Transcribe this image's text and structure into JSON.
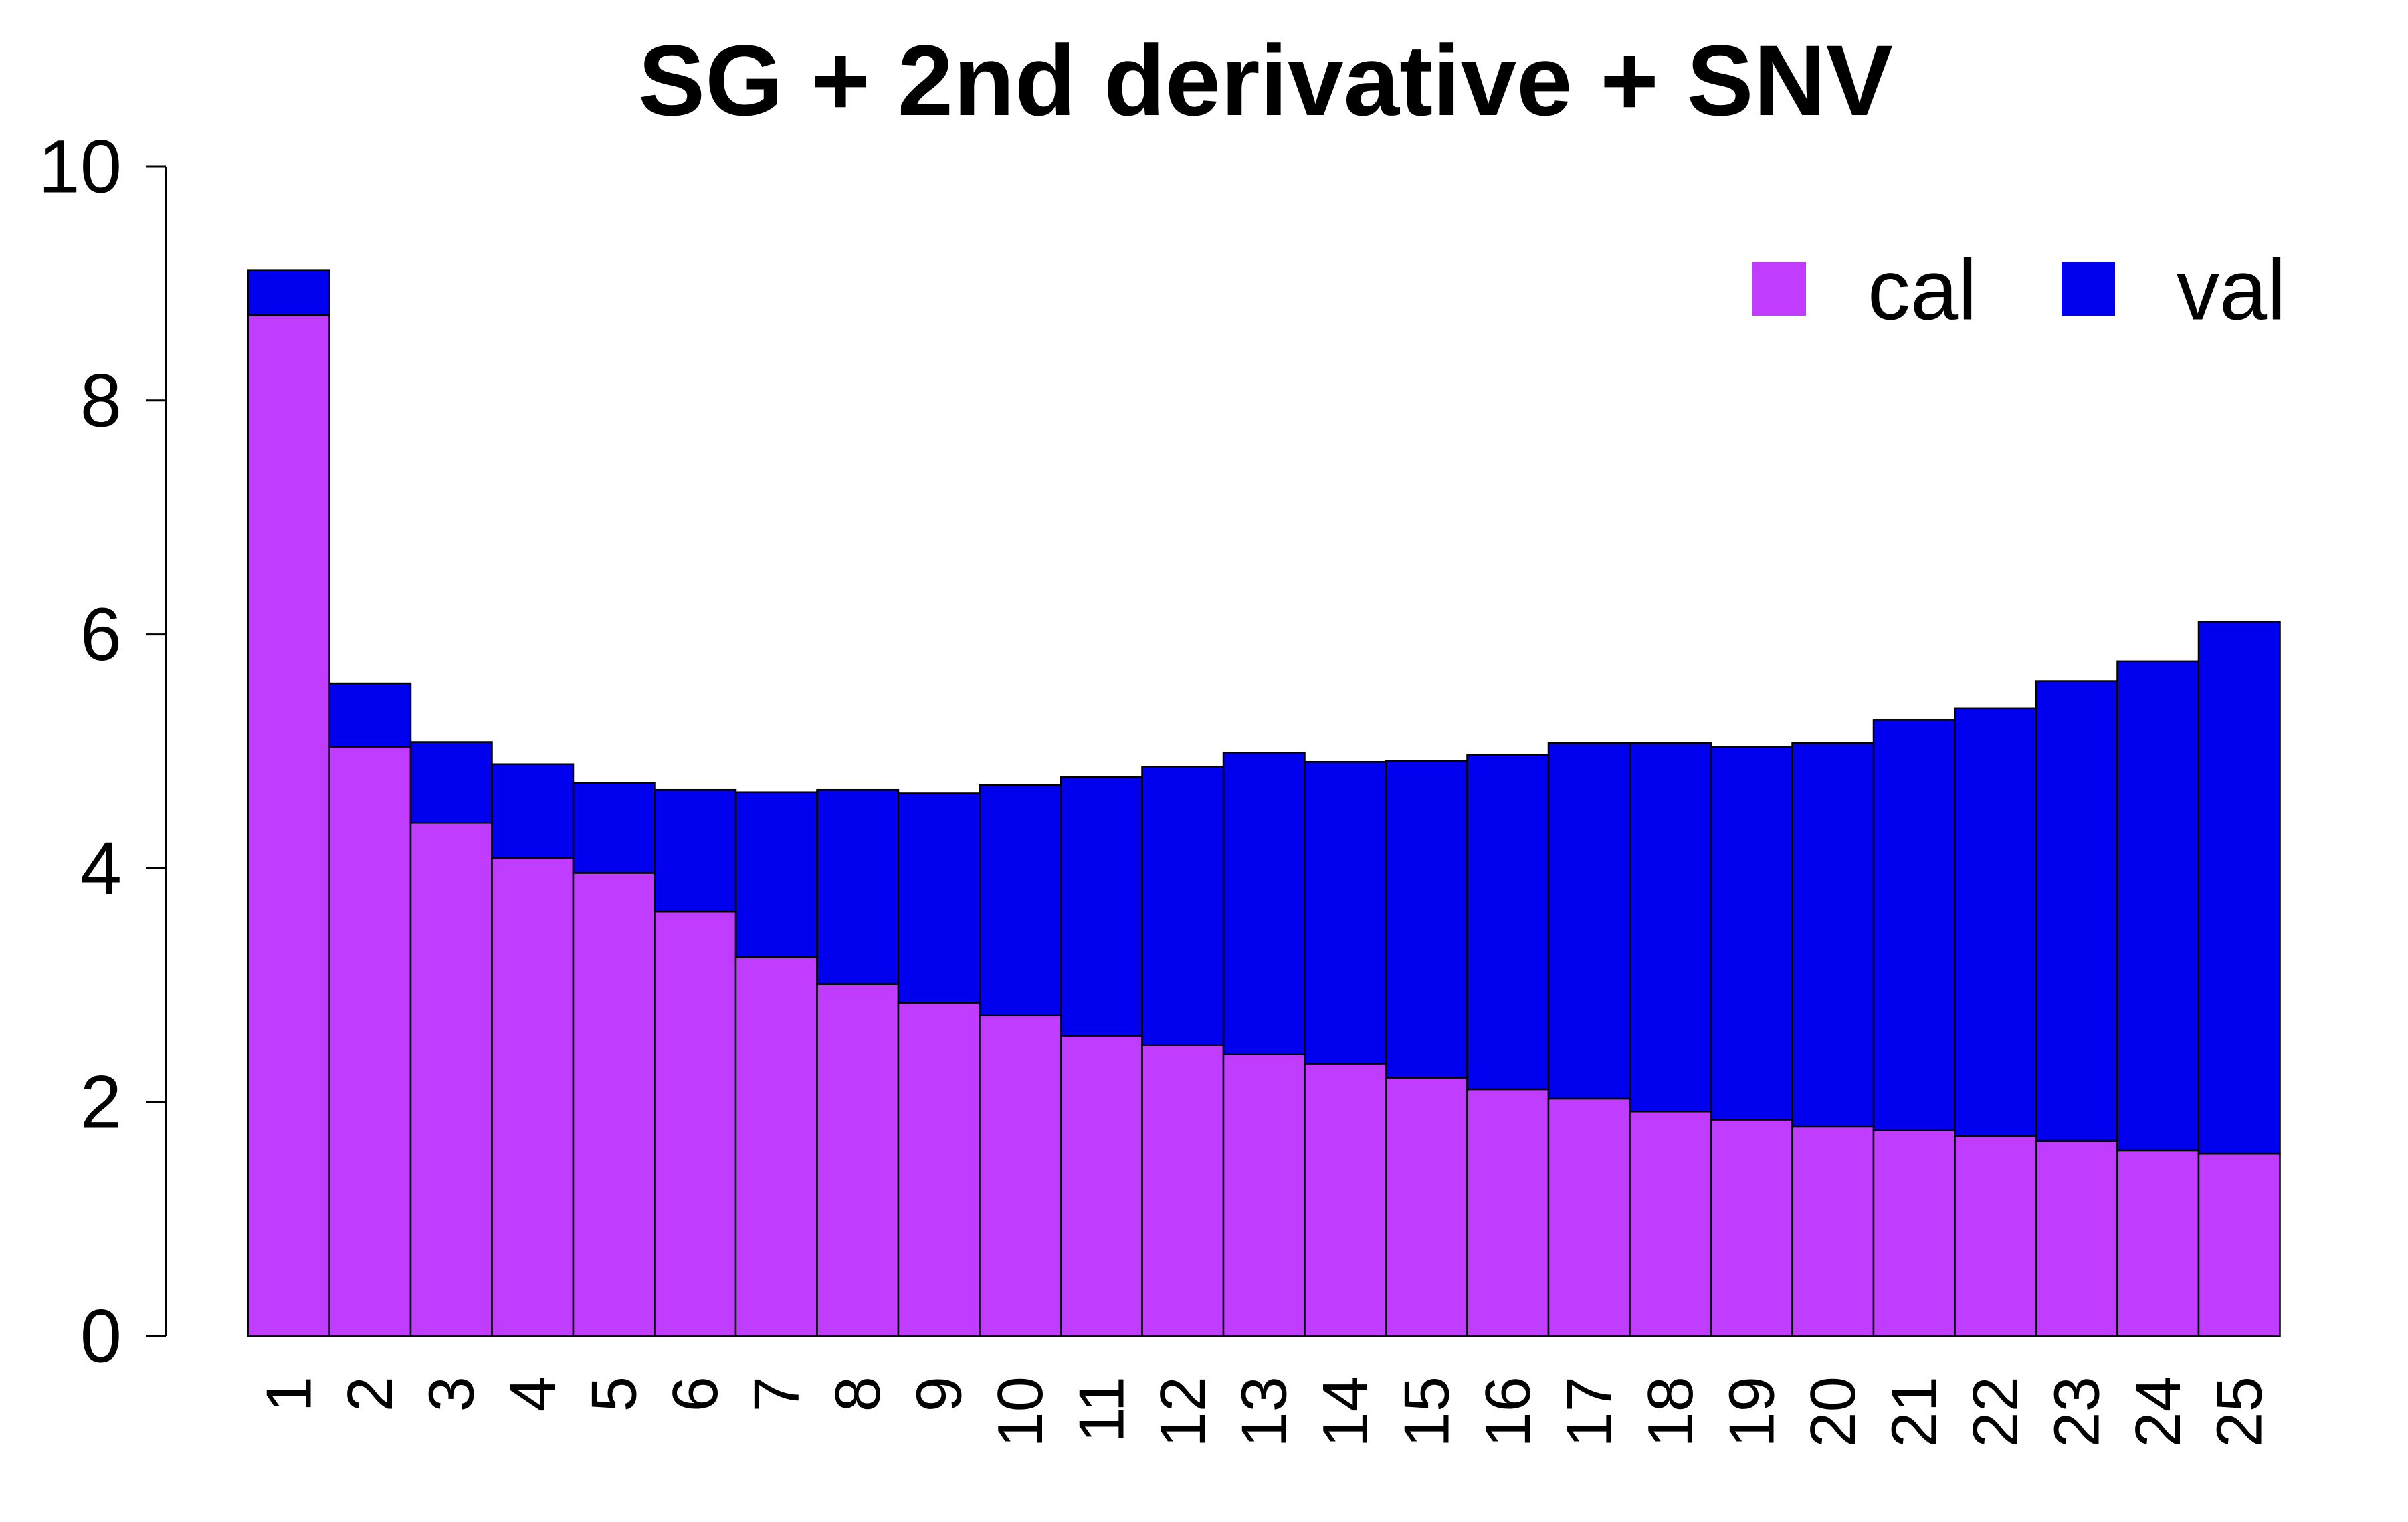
{
  "chart_data": {
    "type": "bar",
    "stacked": true,
    "title": "SG + 2nd derivative + SNV",
    "xlabel": "",
    "ylabel": "",
    "ylim": [
      0,
      10
    ],
    "yticks": [
      0,
      2,
      4,
      6,
      8,
      10
    ],
    "categories": [
      "1",
      "2",
      "3",
      "4",
      "5",
      "6",
      "7",
      "8",
      "9",
      "10",
      "11",
      "12",
      "13",
      "14",
      "15",
      "16",
      "17",
      "18",
      "19",
      "20",
      "21",
      "22",
      "23",
      "24",
      "25"
    ],
    "series": [
      {
        "name": "cal",
        "color": "#c03cff",
        "values": [
          8.73,
          5.04,
          4.39,
          4.09,
          3.96,
          3.63,
          3.24,
          3.01,
          2.85,
          2.74,
          2.57,
          2.49,
          2.41,
          2.33,
          2.21,
          2.11,
          2.03,
          1.92,
          1.85,
          1.79,
          1.76,
          1.71,
          1.67,
          1.59,
          1.56
        ]
      },
      {
        "name": "val",
        "color": "#0000ee",
        "values": [
          0.38,
          0.54,
          0.69,
          0.8,
          0.77,
          1.04,
          1.41,
          1.66,
          1.79,
          1.97,
          2.21,
          2.38,
          2.58,
          2.58,
          2.71,
          2.86,
          3.04,
          3.15,
          3.19,
          3.28,
          3.51,
          3.66,
          3.93,
          4.18,
          4.55
        ]
      }
    ],
    "legend": {
      "position": "top-right",
      "orientation": "horizontal",
      "entries": [
        "cal",
        "val"
      ]
    },
    "grid": false
  }
}
